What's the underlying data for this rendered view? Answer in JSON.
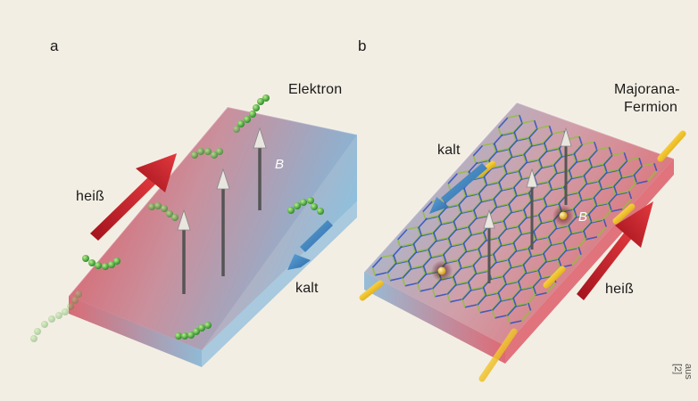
{
  "panel_a": {
    "letter": "a",
    "label_electron": "Elektron",
    "label_hot": "heiß",
    "label_cold": "kalt",
    "field_symbol": "B",
    "colors": {
      "hot": "#c8202a",
      "cold": "#3f86c4",
      "electron": "#37a53a"
    }
  },
  "panel_b": {
    "letter": "b",
    "label_majorana_line1": "Majorana-",
    "label_majorana_line2": "Fermion",
    "label_hot": "heiß",
    "label_cold": "kalt",
    "field_symbol": "B",
    "colors": {
      "hot": "#c8202a",
      "cold": "#3f86c4",
      "majorana": "#f2c32a",
      "lattice_bond_a": "#2b4fc2",
      "lattice_bond_b": "#8fbf3a"
    }
  },
  "credit": "aus [2]"
}
